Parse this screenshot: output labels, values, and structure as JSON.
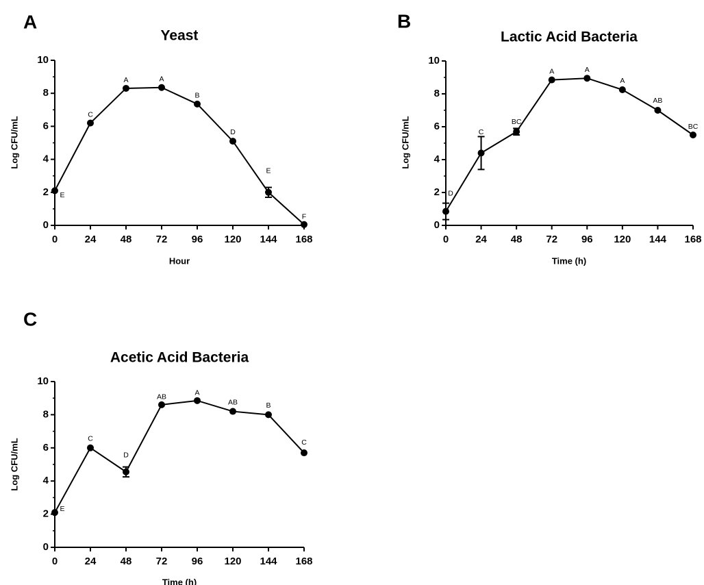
{
  "chart_data": [
    {
      "panel": "A",
      "type": "line",
      "title": "Yeast",
      "xlabel": "Hour",
      "ylabel": "Log CFU/mL",
      "xlim": [
        0,
        168
      ],
      "ylim": [
        0,
        10
      ],
      "x_ticks": [
        "0",
        "24",
        "48",
        "72",
        "96",
        "120",
        "144",
        "168"
      ],
      "y_ticks": [
        "0",
        "2",
        "4",
        "6",
        "8",
        "10"
      ],
      "grid": false,
      "series": [
        {
          "x": [
            0,
            24,
            48,
            72,
            96,
            120,
            144,
            168
          ],
          "y": [
            2.1,
            6.2,
            8.3,
            8.35,
            7.35,
            5.1,
            2.0,
            0.05
          ],
          "error": [
            0,
            0,
            0,
            0,
            0,
            0,
            0.3,
            0
          ],
          "labels": [
            "E",
            "C",
            "A",
            "A",
            "B",
            "D",
            "E",
            "F"
          ]
        }
      ]
    },
    {
      "panel": "B",
      "type": "line",
      "title": "Lactic Acid Bacteria",
      "xlabel": "Time (h)",
      "ylabel": "Log CFU/mL",
      "xlim": [
        0,
        168
      ],
      "ylim": [
        0,
        10
      ],
      "x_ticks": [
        "0",
        "24",
        "48",
        "72",
        "96",
        "120",
        "144",
        "168"
      ],
      "y_ticks": [
        "0",
        "2",
        "4",
        "6",
        "8",
        "10"
      ],
      "grid": false,
      "series": [
        {
          "x": [
            0,
            24,
            48,
            72,
            96,
            120,
            144,
            168
          ],
          "y": [
            0.85,
            4.4,
            5.7,
            8.85,
            8.95,
            8.25,
            7.0,
            5.5
          ],
          "error": [
            0.5,
            1.0,
            0.2,
            0,
            0,
            0,
            0,
            0
          ],
          "labels": [
            "D",
            "C",
            "BC",
            "A",
            "A",
            "A",
            "AB",
            "BC"
          ]
        }
      ]
    },
    {
      "panel": "C",
      "type": "line",
      "title": "Acetic Acid Bacteria",
      "xlabel": "Time (h)",
      "ylabel": "Log CFU/mL",
      "xlim": [
        0,
        168
      ],
      "ylim": [
        0,
        10
      ],
      "x_ticks": [
        "0",
        "24",
        "48",
        "72",
        "96",
        "120",
        "144",
        "168"
      ],
      "y_ticks": [
        "0",
        "2",
        "4",
        "6",
        "8",
        "10"
      ],
      "grid": false,
      "series": [
        {
          "x": [
            0,
            24,
            48,
            72,
            96,
            120,
            144,
            168
          ],
          "y": [
            2.1,
            6.0,
            4.55,
            8.6,
            8.85,
            8.2,
            8.0,
            5.7
          ],
          "error": [
            0,
            0,
            0.3,
            0,
            0,
            0,
            0,
            0
          ],
          "labels": [
            "E",
            "C",
            "D",
            "AB",
            "A",
            "AB",
            "B",
            "C"
          ]
        }
      ]
    }
  ]
}
